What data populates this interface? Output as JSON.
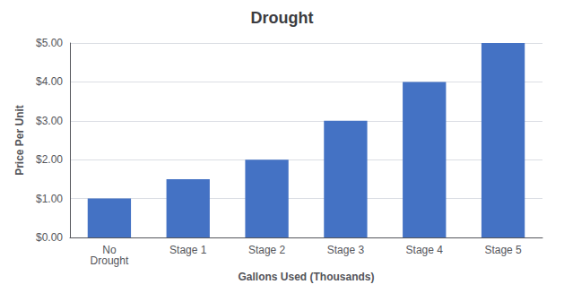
{
  "chart_data": {
    "type": "bar",
    "title": "Drought",
    "xlabel": "Gallons Used (Thousands)",
    "ylabel": "Price Per Unit",
    "categories": [
      "No\nDrought",
      "Stage 1",
      "Stage 2",
      "Stage 3",
      "Stage 4",
      "Stage 5"
    ],
    "values": [
      1.0,
      1.5,
      2.0,
      3.0,
      4.0,
      5.0
    ],
    "color": "#4472C4",
    "ylim": [
      0,
      5.0
    ],
    "yticks": [
      {
        "value": 0.0,
        "label": "$0.00"
      },
      {
        "value": 1.0,
        "label": "$1.00"
      },
      {
        "value": 2.0,
        "label": "$2.00"
      },
      {
        "value": 3.0,
        "label": "$3.00"
      },
      {
        "value": 4.0,
        "label": "$4.00"
      },
      {
        "value": 5.0,
        "label": "$5.00"
      }
    ],
    "grid": true
  }
}
